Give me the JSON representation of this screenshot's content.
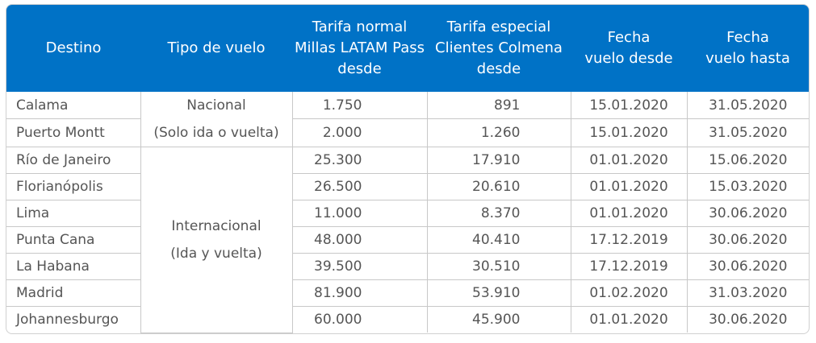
{
  "headers": [
    "Destino",
    "Tipo de vuelo",
    "Tarifa normal\nMillas LATAM Pass\ndesde",
    "Tarifa especial\nClientes Colmena\ndesde",
    "Fecha\nvuelo desde",
    "Fecha\nvuelo hasta"
  ],
  "groups": [
    {
      "line1": "Nacional",
      "line2": "(Solo ida o vuelta)"
    },
    {
      "line1": "Internacional",
      "line2": "(Ida y vuelta)"
    }
  ],
  "rows": [
    {
      "destino": "Calama",
      "normal": "1.750",
      "especial": "891",
      "desde": "15.01.2020",
      "hasta": "31.05.2020"
    },
    {
      "destino": "Puerto Montt",
      "normal": "2.000",
      "especial": "1.260",
      "desde": "15.01.2020",
      "hasta": "31.05.2020"
    },
    {
      "destino": "Río de Janeiro",
      "normal": "25.300",
      "especial": "17.910",
      "desde": "01.01.2020",
      "hasta": "15.06.2020"
    },
    {
      "destino": "Florianópolis",
      "normal": "26.500",
      "especial": "20.610",
      "desde": "01.01.2020",
      "hasta": "15.03.2020"
    },
    {
      "destino": "Lima",
      "normal": "11.000",
      "especial": "8.370",
      "desde": "01.01.2020",
      "hasta": "30.06.2020"
    },
    {
      "destino": "Punta Cana",
      "normal": "48.000",
      "especial": "40.410",
      "desde": "17.12.2019",
      "hasta": "30.06.2020"
    },
    {
      "destino": "La Habana",
      "normal": "39.500",
      "especial": "30.510",
      "desde": "17.12.2019",
      "hasta": "30.06.2020"
    },
    {
      "destino": "Madrid",
      "normal": "81.900",
      "especial": "53.910",
      "desde": "01.02.2020",
      "hasta": "31.03.2020"
    },
    {
      "destino": "Johannesburgo",
      "normal": "60.000",
      "especial": "45.900",
      "desde": "01.01.2020",
      "hasta": "30.06.2020"
    }
  ]
}
